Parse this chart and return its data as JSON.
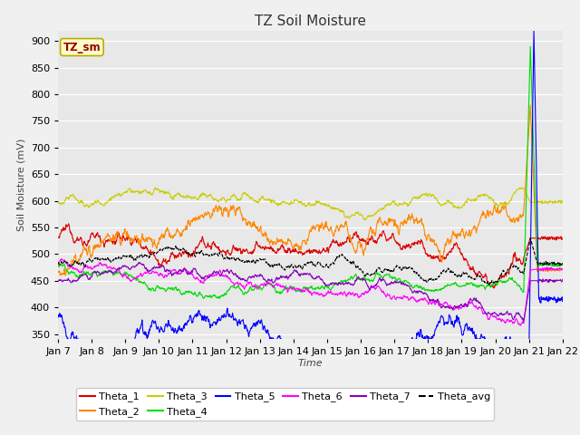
{
  "title": "TZ Soil Moisture",
  "ylabel": "Soil Moisture (mV)",
  "xlabel": "Time",
  "annotation": "TZ_sm",
  "ylim": [
    340,
    920
  ],
  "yticks": [
    350,
    400,
    450,
    500,
    550,
    600,
    650,
    700,
    750,
    800,
    850,
    900
  ],
  "x_tick_labels": [
    "Jan 7",
    "Jan 8",
    "Jan 9",
    "Jan 10",
    "Jan 11",
    "Jan 12",
    "Jan 13",
    "Jan 14",
    "Jan 15",
    "Jan 16",
    "Jan 17",
    "Jan 18",
    "Jan 19",
    "Jan 20",
    "Jan 21",
    "Jan 22"
  ],
  "colors": {
    "Theta_1": "#dd0000",
    "Theta_2": "#ff8800",
    "Theta_3": "#cccc00",
    "Theta_4": "#00dd00",
    "Theta_5": "#0000ff",
    "Theta_6": "#ff00ff",
    "Theta_7": "#8800bb",
    "Theta_avg": "#000000"
  },
  "fig_bg": "#f0f0f0",
  "ax_bg": "#e8e8e8",
  "grid_color": "#ffffff",
  "title_fontsize": 11,
  "label_fontsize": 8,
  "tick_fontsize": 8
}
